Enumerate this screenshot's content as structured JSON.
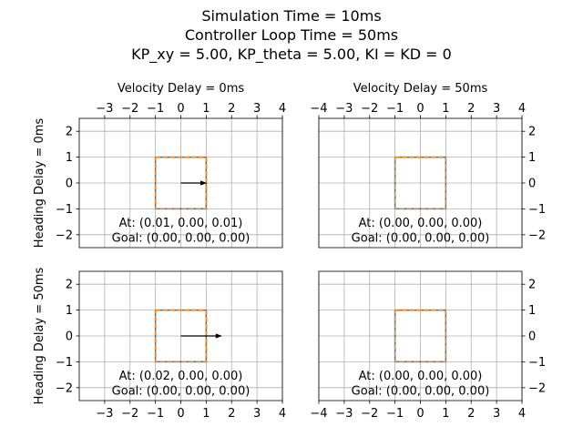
{
  "figure": {
    "title_lines": [
      "Simulation Time = 10ms",
      "Controller Loop Time = 50ms",
      "KP_xy = 5.00, KP_theta = 5.00, KI = KD = 0"
    ]
  },
  "chart_data": [
    {
      "type": "line",
      "col_title": "Velocity Delay = 0ms",
      "row_label": "Heading Delay = 0ms",
      "xlim": [
        -4,
        4
      ],
      "ylim": [
        -2.5,
        2.5
      ],
      "xticks": [
        -3,
        -2,
        -1,
        0,
        1,
        2,
        3,
        4
      ],
      "yticks": [
        -2,
        -1,
        0,
        1,
        2
      ],
      "grid": true,
      "series": [
        {
          "x": [
            -1,
            1,
            1,
            -1,
            -1
          ],
          "y": [
            1,
            1,
            -1,
            -1,
            1
          ],
          "color": "#1f77b4",
          "style": "solid"
        },
        {
          "x": [
            -1,
            1,
            1,
            -1,
            -1
          ],
          "y": [
            1,
            1,
            -1,
            -1,
            1
          ],
          "color": "#ff7f0e",
          "style": "dashed"
        }
      ],
      "arrow": {
        "x": 0,
        "y": 0,
        "dx": 1.0,
        "dy": 0
      },
      "annotations": [
        "At: (0.01, 0.00, 0.01)",
        "Goal: (0.00, 0.00, 0.00)"
      ]
    },
    {
      "type": "line",
      "col_title": "Velocity Delay = 50ms",
      "row_label": "",
      "xlim": [
        -4,
        4
      ],
      "ylim": [
        -2.5,
        2.5
      ],
      "xticks": [
        -4,
        -3,
        -2,
        -1,
        0,
        1,
        2,
        3,
        4
      ],
      "yticks": [
        -2,
        -1,
        0,
        1,
        2
      ],
      "grid": true,
      "series": [
        {
          "x": [
            -1,
            1,
            1,
            -1,
            -1
          ],
          "y": [
            1,
            1,
            -1,
            -1,
            1
          ],
          "color": "#1f77b4",
          "style": "solid"
        },
        {
          "x": [
            -1,
            1,
            1,
            -1,
            -1
          ],
          "y": [
            1,
            1,
            -1,
            -1,
            1
          ],
          "color": "#ff7f0e",
          "style": "dashed"
        }
      ],
      "arrow": null,
      "annotations": [
        "At: (0.00, 0.00, 0.00)",
        "Goal: (0.00, 0.00, 0.00)"
      ]
    },
    {
      "type": "line",
      "col_title": "",
      "row_label": "Heading Delay = 50ms",
      "xlim": [
        -4,
        4
      ],
      "ylim": [
        -2.5,
        2.5
      ],
      "xticks": [
        -3,
        -2,
        -1,
        0,
        1,
        2,
        3,
        4
      ],
      "yticks": [
        -2,
        -1,
        0,
        1,
        2
      ],
      "grid": true,
      "series": [
        {
          "x": [
            -1,
            1,
            1,
            -1,
            -1
          ],
          "y": [
            1,
            1,
            -1,
            -1,
            1
          ],
          "color": "#1f77b4",
          "style": "solid"
        },
        {
          "x": [
            -1,
            1,
            1,
            -1,
            -1
          ],
          "y": [
            1,
            1,
            -1,
            -1,
            1
          ],
          "color": "#ff7f0e",
          "style": "dashed"
        }
      ],
      "arrow": {
        "x": 0,
        "y": 0,
        "dx": 1.6,
        "dy": 0
      },
      "annotations": [
        "At: (0.02, 0.00, 0.00)",
        "Goal: (0.00, 0.00, 0.00)"
      ]
    },
    {
      "type": "line",
      "col_title": "",
      "row_label": "",
      "xlim": [
        -4,
        4
      ],
      "ylim": [
        -2.5,
        2.5
      ],
      "xticks": [
        -4,
        -3,
        -2,
        -1,
        0,
        1,
        2,
        3,
        4
      ],
      "yticks": [
        -2,
        -1,
        0,
        1,
        2
      ],
      "grid": true,
      "series": [
        {
          "x": [
            -1,
            1,
            1,
            -1,
            -1
          ],
          "y": [
            1,
            1,
            -1,
            -1,
            1
          ],
          "color": "#1f77b4",
          "style": "solid"
        },
        {
          "x": [
            -1,
            1,
            1,
            -1,
            -1
          ],
          "y": [
            1,
            1,
            -1,
            -1,
            1
          ],
          "color": "#ff7f0e",
          "style": "dashed"
        }
      ],
      "arrow": null,
      "annotations": [
        "At: (0.00, 0.00, 0.00)",
        "Goal: (0.00, 0.00, 0.00)"
      ]
    }
  ]
}
